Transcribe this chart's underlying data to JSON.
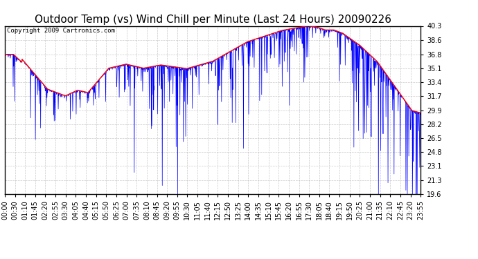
{
  "title": "Outdoor Temp (vs) Wind Chill per Minute (Last 24 Hours) 20090226",
  "copyright": "Copyright 2009 Cartronics.com",
  "ylim": [
    19.6,
    40.3
  ],
  "yticks": [
    19.6,
    21.3,
    23.1,
    24.8,
    26.5,
    28.2,
    29.9,
    31.7,
    33.4,
    35.1,
    36.8,
    38.6,
    40.3
  ],
  "xtick_labels": [
    "00:00",
    "00:30",
    "01:10",
    "01:45",
    "02:20",
    "02:55",
    "03:30",
    "04:05",
    "04:40",
    "05:15",
    "05:50",
    "06:25",
    "07:00",
    "07:35",
    "08:10",
    "08:45",
    "09:20",
    "09:55",
    "10:30",
    "11:05",
    "11:40",
    "12:15",
    "12:50",
    "13:25",
    "14:00",
    "14:35",
    "15:10",
    "15:45",
    "16:20",
    "16:55",
    "17:30",
    "18:05",
    "18:40",
    "19:15",
    "19:50",
    "20:25",
    "21:00",
    "21:35",
    "22:10",
    "22:45",
    "23:20",
    "23:55"
  ],
  "blue_color": "#0000ff",
  "red_color": "#ff0000",
  "bg_color": "#ffffff",
  "grid_color": "#bbbbbb",
  "title_fontsize": 11,
  "tick_fontsize": 7,
  "copyright_fontsize": 6.5
}
